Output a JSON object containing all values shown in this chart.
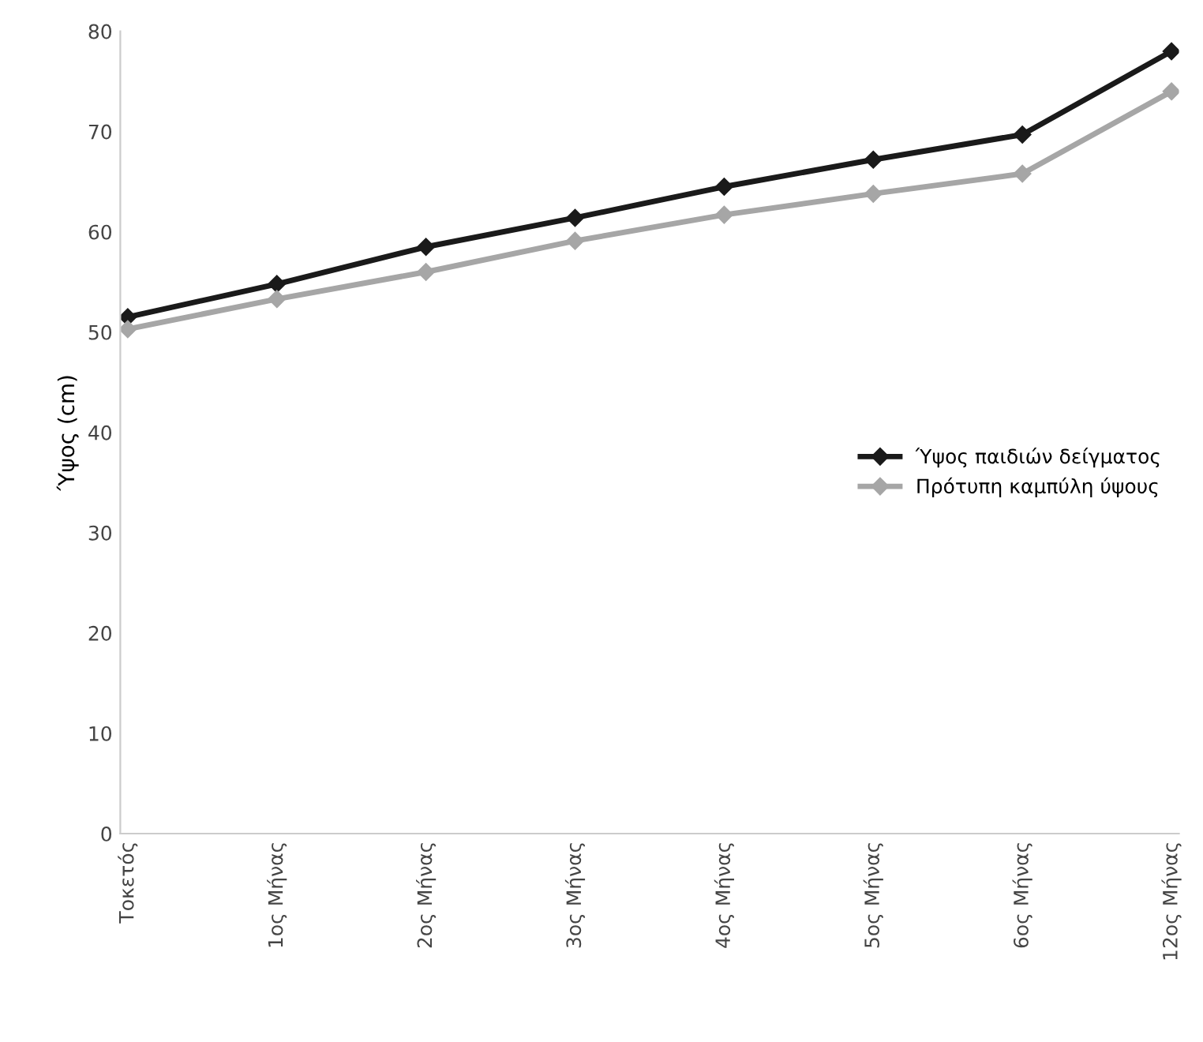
{
  "chart_data": {
    "type": "line",
    "ylabel": "Ύψος (cm)",
    "categories": [
      "Τοκετός",
      "1ος Μήνας",
      "2ος Μήνας",
      "3ος Μήνας",
      "4ος Μήνας",
      "5ος Μήνας",
      "6ος Μήνας",
      "12ος Μήνας"
    ],
    "series": [
      {
        "name": "Ύψος παιδιών δείγματος",
        "color": "#1a1a1a",
        "values": [
          51.5,
          54.8,
          58.5,
          61.4,
          64.5,
          67.2,
          69.7,
          78
        ]
      },
      {
        "name": "Πρότυπη καμπύλη ύψους",
        "color": "#a6a6a6",
        "values": [
          50.3,
          53.3,
          56,
          59.1,
          61.7,
          63.8,
          65.8,
          74
        ]
      }
    ],
    "ylim": [
      0,
      80
    ],
    "yticks": [
      0,
      10,
      20,
      30,
      40,
      50,
      60,
      70,
      80
    ],
    "marker": "diamond",
    "line_style": "solid",
    "grid": false,
    "legend": "center right"
  }
}
